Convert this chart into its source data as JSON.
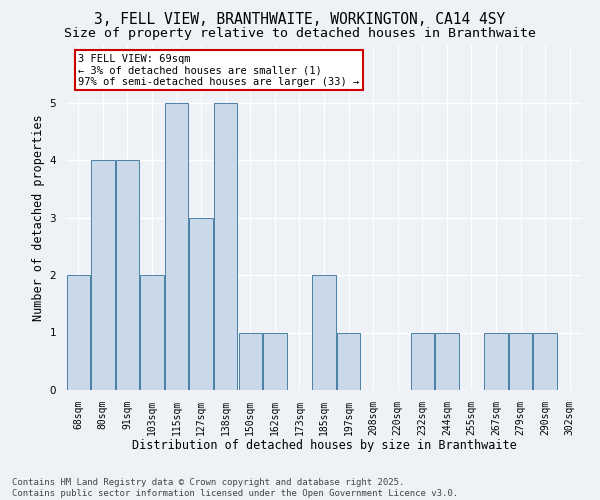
{
  "title_line1": "3, FELL VIEW, BRANTHWAITE, WORKINGTON, CA14 4SY",
  "title_line2": "Size of property relative to detached houses in Branthwaite",
  "xlabel": "Distribution of detached houses by size in Branthwaite",
  "ylabel": "Number of detached properties",
  "categories": [
    "68sqm",
    "80sqm",
    "91sqm",
    "103sqm",
    "115sqm",
    "127sqm",
    "138sqm",
    "150sqm",
    "162sqm",
    "173sqm",
    "185sqm",
    "197sqm",
    "208sqm",
    "220sqm",
    "232sqm",
    "244sqm",
    "255sqm",
    "267sqm",
    "279sqm",
    "290sqm",
    "302sqm"
  ],
  "values": [
    2,
    4,
    4,
    2,
    5,
    3,
    5,
    1,
    1,
    0,
    2,
    1,
    0,
    0,
    1,
    1,
    0,
    1,
    1,
    1,
    0
  ],
  "bar_color": "#c9d9ea",
  "bar_edge_color": "#4a7fa5",
  "annotation_text": "3 FELL VIEW: 69sqm\n← 3% of detached houses are smaller (1)\n97% of semi-detached houses are larger (33) →",
  "annotation_box_color": "#ffffff",
  "annotation_border_color": "#cc0000",
  "ylim": [
    0,
    6
  ],
  "yticks": [
    0,
    1,
    2,
    3,
    4,
    5,
    6
  ],
  "background_color": "#eef2f7",
  "plot_background": "#eef2f7",
  "grid_color": "#ffffff",
  "footer": "Contains HM Land Registry data © Crown copyright and database right 2025.\nContains public sector information licensed under the Open Government Licence v3.0.",
  "title_fontsize": 10.5,
  "subtitle_fontsize": 9.5,
  "axis_label_fontsize": 8.5,
  "tick_fontsize": 7,
  "annotation_fontsize": 7.5,
  "footer_fontsize": 6.5
}
